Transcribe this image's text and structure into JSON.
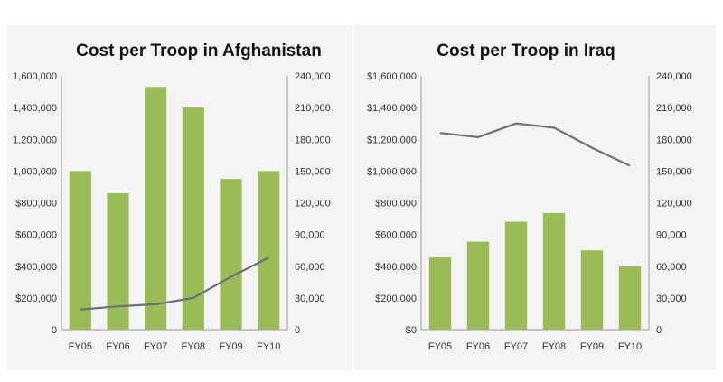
{
  "chart_data": [
    {
      "type": "bar",
      "title": "Cost per Troop in Afghanistan",
      "categories": [
        "FY05",
        "FY06",
        "FY07",
        "FY08",
        "FY09",
        "FY10"
      ],
      "series": [
        {
          "type": "bar",
          "axis": "left",
          "values": [
            1000000,
            860000,
            1530000,
            1400000,
            950000,
            1000000
          ]
        },
        {
          "type": "line",
          "axis": "right",
          "values": [
            19000,
            22000,
            24000,
            30000,
            50000,
            68000
          ]
        }
      ],
      "ylim_left": [
        0,
        1600000
      ],
      "ylim_right": [
        0,
        240000
      ],
      "left_ticks": [
        "0",
        "$200,000",
        "$400,000",
        "$600,000",
        "$800,000",
        "1,000,000",
        "1,200,000",
        "1,400,000",
        "1,600,000"
      ],
      "right_ticks": [
        "0",
        "30,000",
        "60,000",
        "90,000",
        "120,000",
        "150,000",
        "180,000",
        "210,000",
        "240,000"
      ],
      "colors": {
        "bar": "#9bbb59",
        "line": "#6d6f7a"
      }
    },
    {
      "type": "bar",
      "title": "Cost per Troop in Iraq",
      "categories": [
        "FY05",
        "FY06",
        "FY07",
        "FY08",
        "FY09",
        "FY10"
      ],
      "series": [
        {
          "type": "bar",
          "axis": "left",
          "values": [
            455000,
            555000,
            680000,
            735000,
            500000,
            400000
          ]
        },
        {
          "type": "line",
          "axis": "right",
          "values": [
            186000,
            182000,
            195000,
            191000,
            172000,
            155000
          ]
        }
      ],
      "ylim_left": [
        0,
        1600000
      ],
      "ylim_right": [
        0,
        240000
      ],
      "left_ticks": [
        "$0",
        "$200,000",
        "$400,000",
        "$600,000",
        "$800,000",
        "$1,000,000",
        "$1,200,000",
        "$1,400,000",
        "$1,600,000"
      ],
      "right_ticks": [
        "0",
        "30,000",
        "60,000",
        "90,000",
        "120,000",
        "150,000",
        "180,000",
        "210,000",
        "240,000"
      ],
      "colors": {
        "bar": "#9bbb59",
        "line": "#6d6f7a"
      }
    }
  ]
}
